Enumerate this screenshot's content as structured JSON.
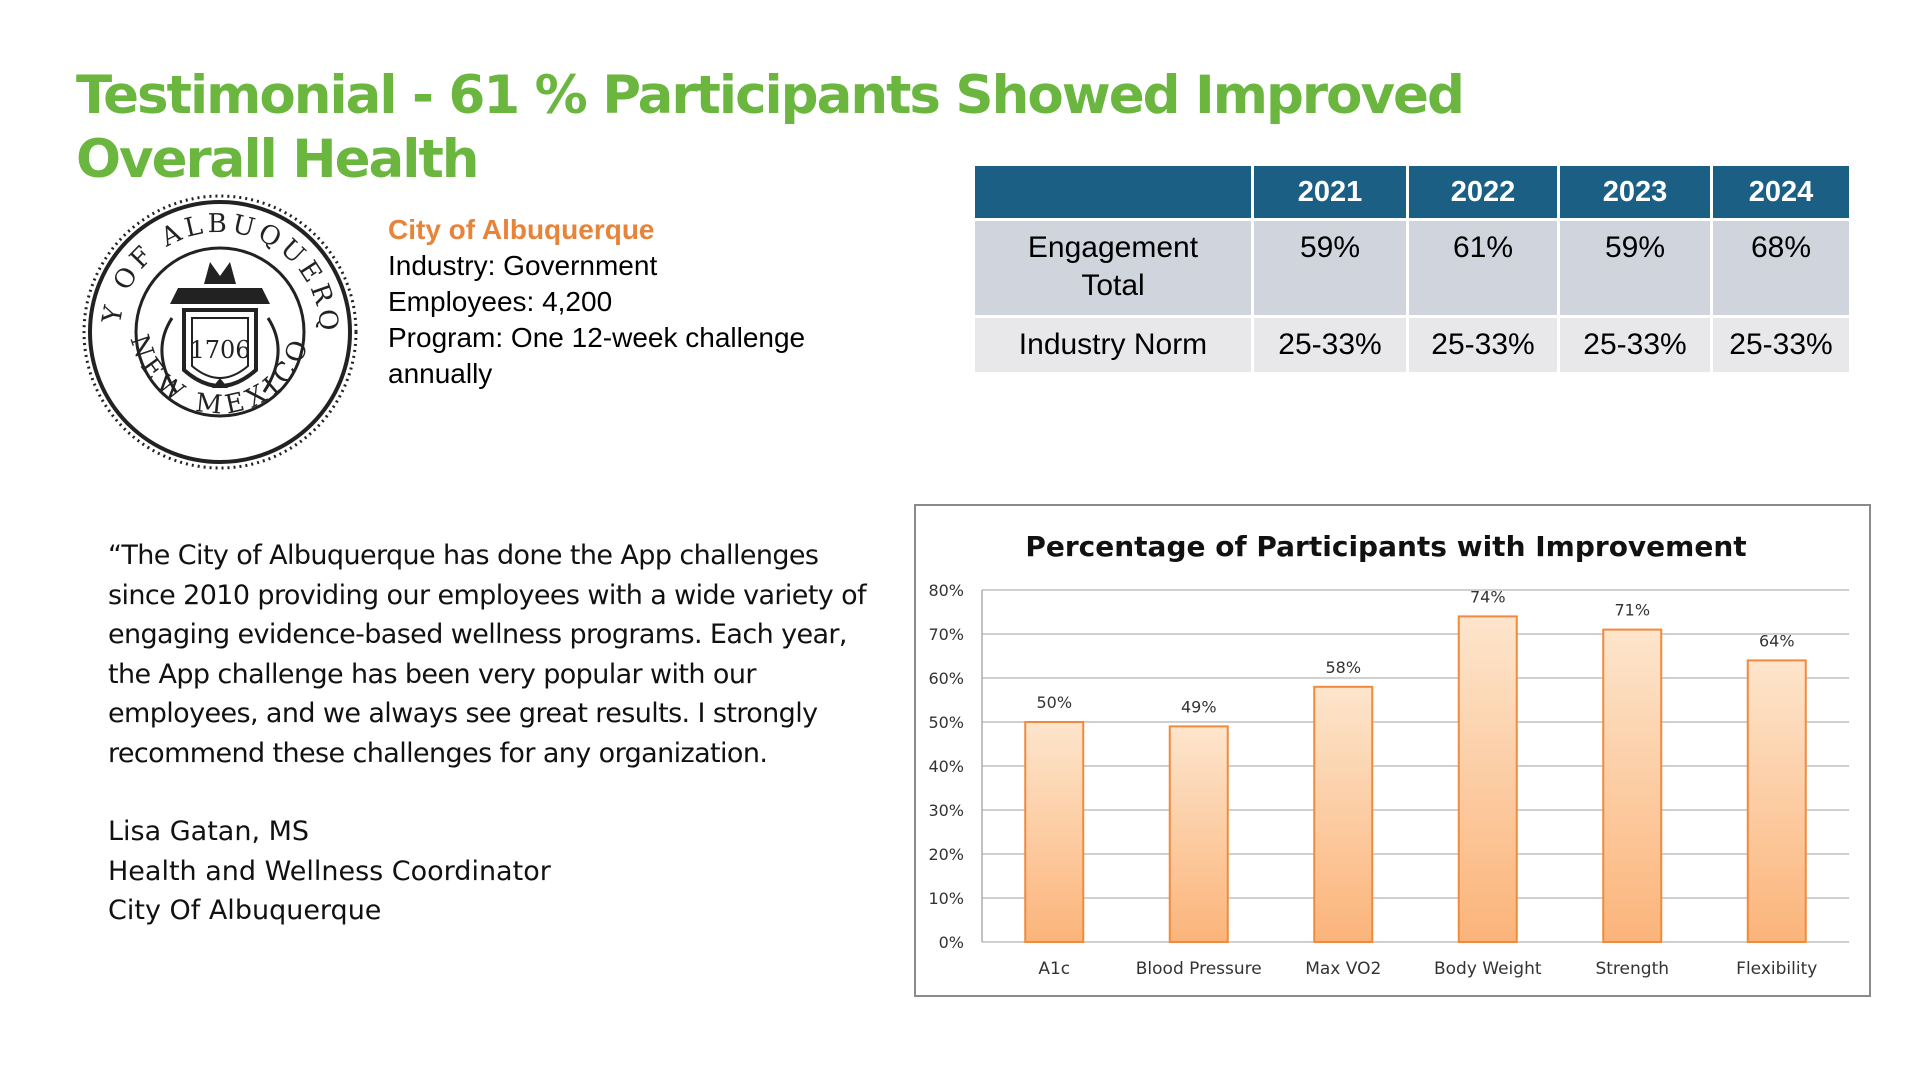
{
  "title": "Testimonial  - 61 % Participants Showed Improved Overall Health",
  "seal": {
    "top_text": "CITY OF ALBUQUERQUE",
    "bottom_text": "NEW MEXICO",
    "year": "1706"
  },
  "company": {
    "name": "City of Albuquerque",
    "industry": "Industry: Government",
    "employees": "Employees: 4,200",
    "program": "Program:  One 12-week challenge annually"
  },
  "table": {
    "headers": [
      "",
      "2021",
      "2022",
      "2023",
      "2024"
    ],
    "rows": [
      [
        "Engagement Total",
        "59%",
        "61%",
        "59%",
        "68%"
      ],
      [
        "Industry Norm",
        "25-33%",
        "25-33%",
        "25-33%",
        "25-33%"
      ]
    ]
  },
  "quote": {
    "text": "“The City of Albuquerque has done the App challenges since 2010 providing our employees with a wide variety of engaging evidence-based wellness programs. Each year, the App challenge has been very popular with our employees, and we always see great results. I strongly recommend these challenges for any organization.",
    "author": "Lisa Gatan, MS",
    "role": "Health and Wellness Coordinator",
    "org": "City Of Albuquerque"
  },
  "chart_data": {
    "type": "bar",
    "title": "Percentage of Participants with Improvement",
    "categories": [
      "A1c",
      "Blood Pressure",
      "Max VO2",
      "Body Weight",
      "Strength",
      "Flexibility"
    ],
    "values": [
      50,
      49,
      58,
      74,
      71,
      64
    ],
    "labels": [
      "50%",
      "49%",
      "58%",
      "74%",
      "71%",
      "64%"
    ],
    "yticks": [
      "0%",
      "10%",
      "20%",
      "30%",
      "40%",
      "50%",
      "60%",
      "70%",
      "80%"
    ],
    "ylim": [
      0,
      80
    ],
    "xlabel": "",
    "ylabel": "",
    "grid": true,
    "bar_color_top": "#fde5cc",
    "bar_color_bottom": "#fbb47a",
    "bar_edge": "#f08a3c"
  }
}
